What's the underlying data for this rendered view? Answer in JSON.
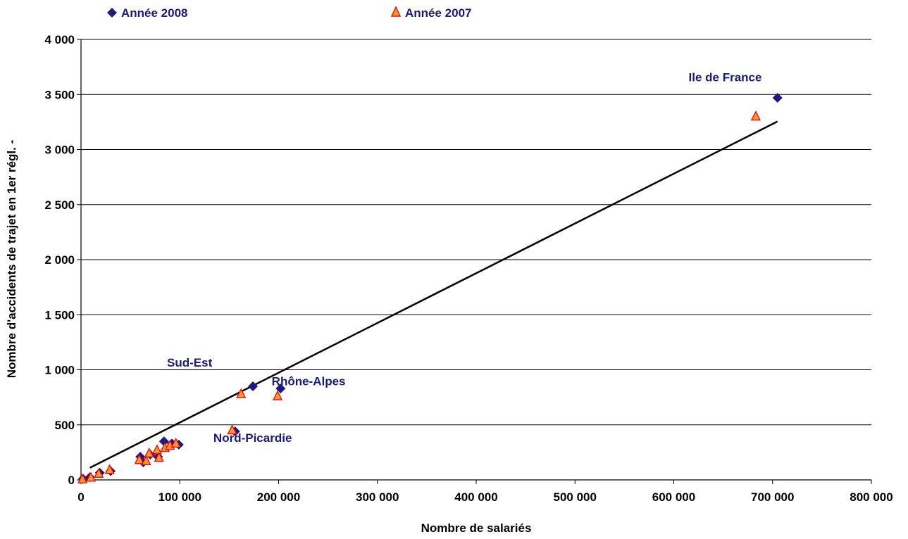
{
  "chart_data": {
    "type": "scatter",
    "title": "",
    "xlabel": "Nombre de salariés",
    "ylabel": "Nombre d'accidents de trajet en 1er régl. -",
    "xlim": [
      0,
      800000
    ],
    "ylim": [
      0,
      4000
    ],
    "x_ticks": [
      0,
      100000,
      200000,
      300000,
      400000,
      500000,
      600000,
      700000,
      800000
    ],
    "x_tick_labels": [
      "0",
      "100 000",
      "200 000",
      "300 000",
      "400 000",
      "500 000",
      "600 000",
      "700 000",
      "800 000"
    ],
    "y_ticks": [
      0,
      500,
      1000,
      1500,
      2000,
      2500,
      3000,
      3500,
      4000
    ],
    "y_tick_labels": [
      "0",
      "500",
      "1 000",
      "1 500",
      "2 000",
      "2 500",
      "3 000",
      "3 500",
      "4 000"
    ],
    "grid": "horizontal",
    "legend_position": "top",
    "colors": {
      "series_2008": "#1a1a80",
      "series_2007_fill": "#ff9933",
      "series_2007_edge": "#ff0000",
      "trendline": "#000000",
      "annotation": "#1a1a80"
    },
    "series": [
      {
        "name": "Année 2008",
        "marker": "diamond",
        "points": [
          {
            "x": 2000,
            "y": 10
          },
          {
            "x": 9000,
            "y": 25
          },
          {
            "x": 19000,
            "y": 65
          },
          {
            "x": 30000,
            "y": 80
          },
          {
            "x": 60000,
            "y": 210
          },
          {
            "x": 63000,
            "y": 160
          },
          {
            "x": 70000,
            "y": 230
          },
          {
            "x": 78000,
            "y": 210
          },
          {
            "x": 84000,
            "y": 350
          },
          {
            "x": 92000,
            "y": 330
          },
          {
            "x": 99000,
            "y": 320
          },
          {
            "x": 156000,
            "y": 440
          },
          {
            "x": 174000,
            "y": 850
          },
          {
            "x": 202000,
            "y": 830
          },
          {
            "x": 705000,
            "y": 3470
          }
        ]
      },
      {
        "name": "Année 2007",
        "marker": "triangle",
        "points": [
          {
            "x": 1500,
            "y": 5
          },
          {
            "x": 10000,
            "y": 20
          },
          {
            "x": 18000,
            "y": 55
          },
          {
            "x": 29000,
            "y": 90
          },
          {
            "x": 59000,
            "y": 180
          },
          {
            "x": 66000,
            "y": 170
          },
          {
            "x": 69000,
            "y": 240
          },
          {
            "x": 77000,
            "y": 270
          },
          {
            "x": 79000,
            "y": 200
          },
          {
            "x": 85000,
            "y": 290
          },
          {
            "x": 90000,
            "y": 310
          },
          {
            "x": 96000,
            "y": 330
          },
          {
            "x": 153000,
            "y": 450
          },
          {
            "x": 162000,
            "y": 780
          },
          {
            "x": 199000,
            "y": 760
          },
          {
            "x": 683000,
            "y": 3300
          }
        ]
      }
    ],
    "trendline": {
      "x": [
        9000,
        705000
      ],
      "y": [
        110,
        3255
      ]
    },
    "annotations": [
      {
        "text": "Ile de France",
        "x": 615000,
        "y": 3620
      },
      {
        "text": "Sud-Est",
        "x": 87000,
        "y": 1030
      },
      {
        "text": "Rhône-Alpes",
        "x": 193000,
        "y": 860
      },
      {
        "text": "Nord-Picardie",
        "x": 134000,
        "y": 345
      }
    ]
  }
}
